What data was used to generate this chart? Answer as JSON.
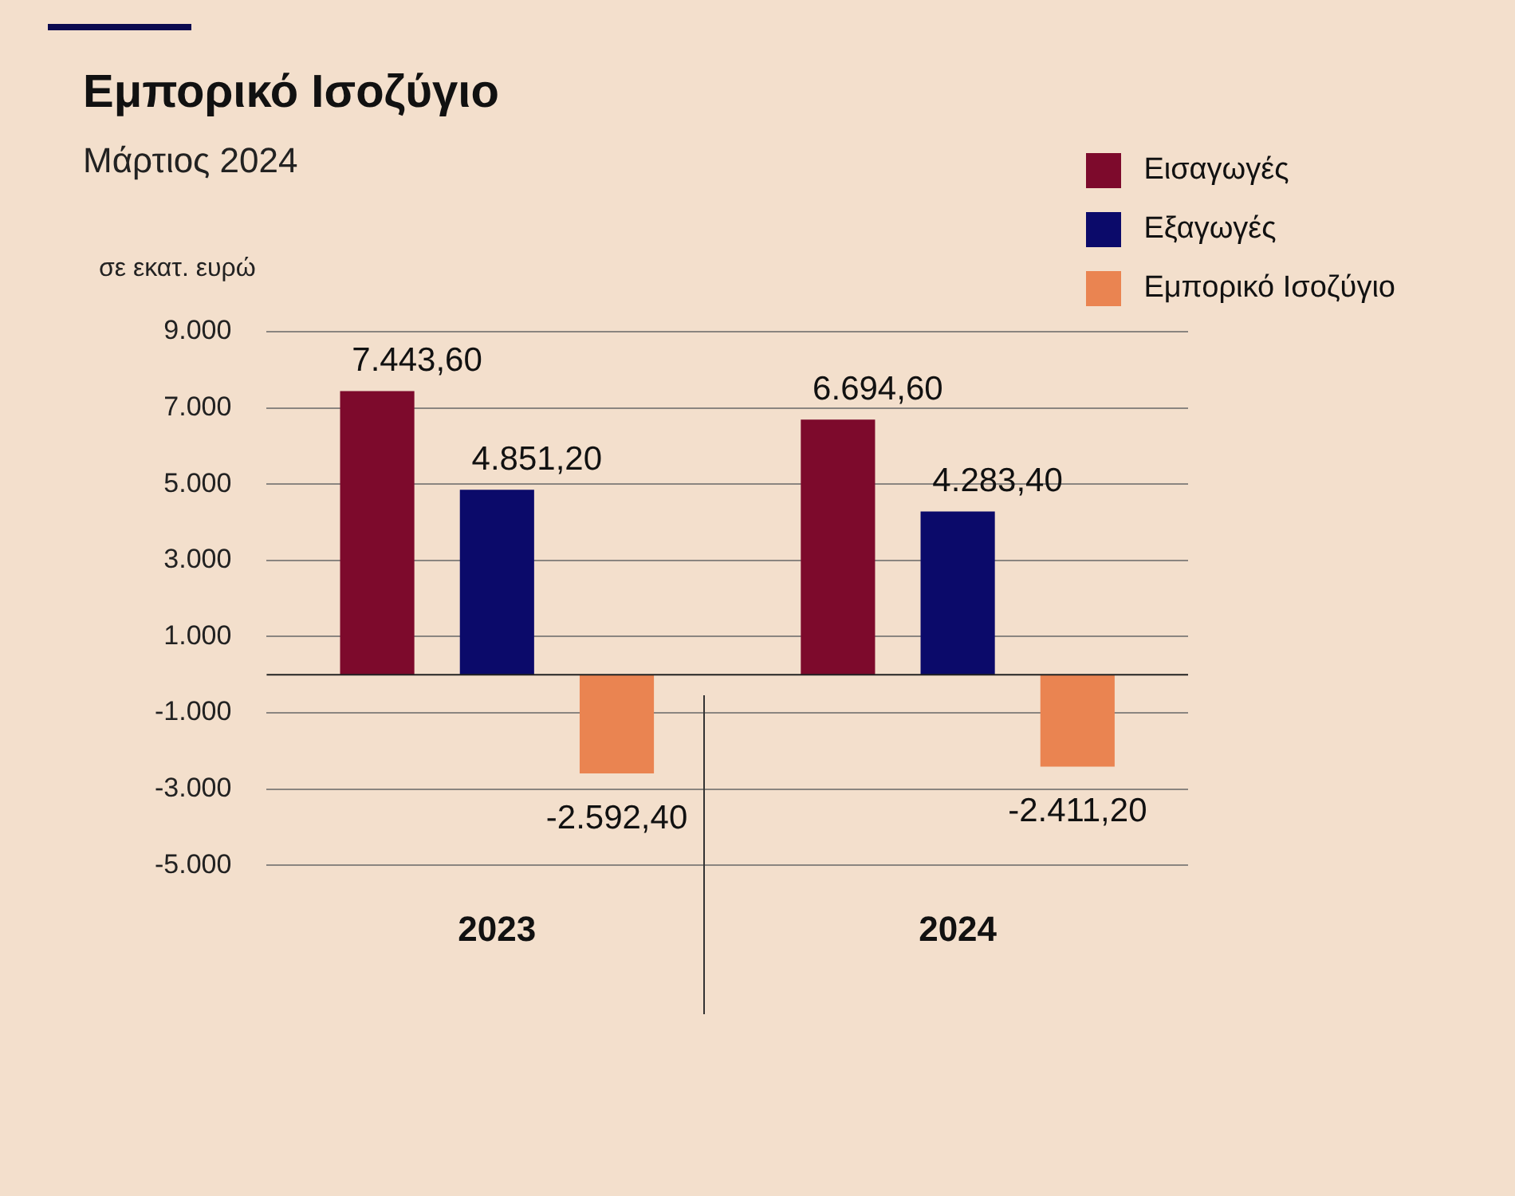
{
  "chart_data": {
    "type": "bar",
    "title": "Εμπορικό Ισοζύγιο",
    "subtitle": "Μάρτιος 2024",
    "ylabel": "σε εκατ. ευρώ",
    "categories": [
      "2023",
      "2024"
    ],
    "series": [
      {
        "name": "Εισαγωγές",
        "color": "#7d0a2c",
        "values": [
          7443.6,
          6694.6
        ],
        "value_labels": [
          "7.443,60",
          "6.694,60"
        ]
      },
      {
        "name": "Εξαγωγές",
        "color": "#0b0a6a",
        "values": [
          4851.2,
          4283.4
        ],
        "value_labels": [
          "4.851,20",
          "4.283,40"
        ]
      },
      {
        "name": "Εμπορικό Ισοζύγιο",
        "color": "#ea8451",
        "values": [
          -2592.4,
          -2411.2
        ],
        "value_labels": [
          "-2.592,40",
          "-2.411,20"
        ]
      }
    ],
    "ylim": [
      -5000,
      9000
    ],
    "yticks": [
      {
        "value": -5000,
        "label": "-5.000"
      },
      {
        "value": -3000,
        "label": "-3.000"
      },
      {
        "value": -1000,
        "label": "-1.000"
      },
      {
        "value": 1000,
        "label": "1.000"
      },
      {
        "value": 3000,
        "label": "3.000"
      },
      {
        "value": 5000,
        "label": "5.000"
      },
      {
        "value": 7000,
        "label": "7.000"
      },
      {
        "value": 9000,
        "label": "9.000"
      }
    ],
    "grid": "y",
    "legend": "top right"
  }
}
